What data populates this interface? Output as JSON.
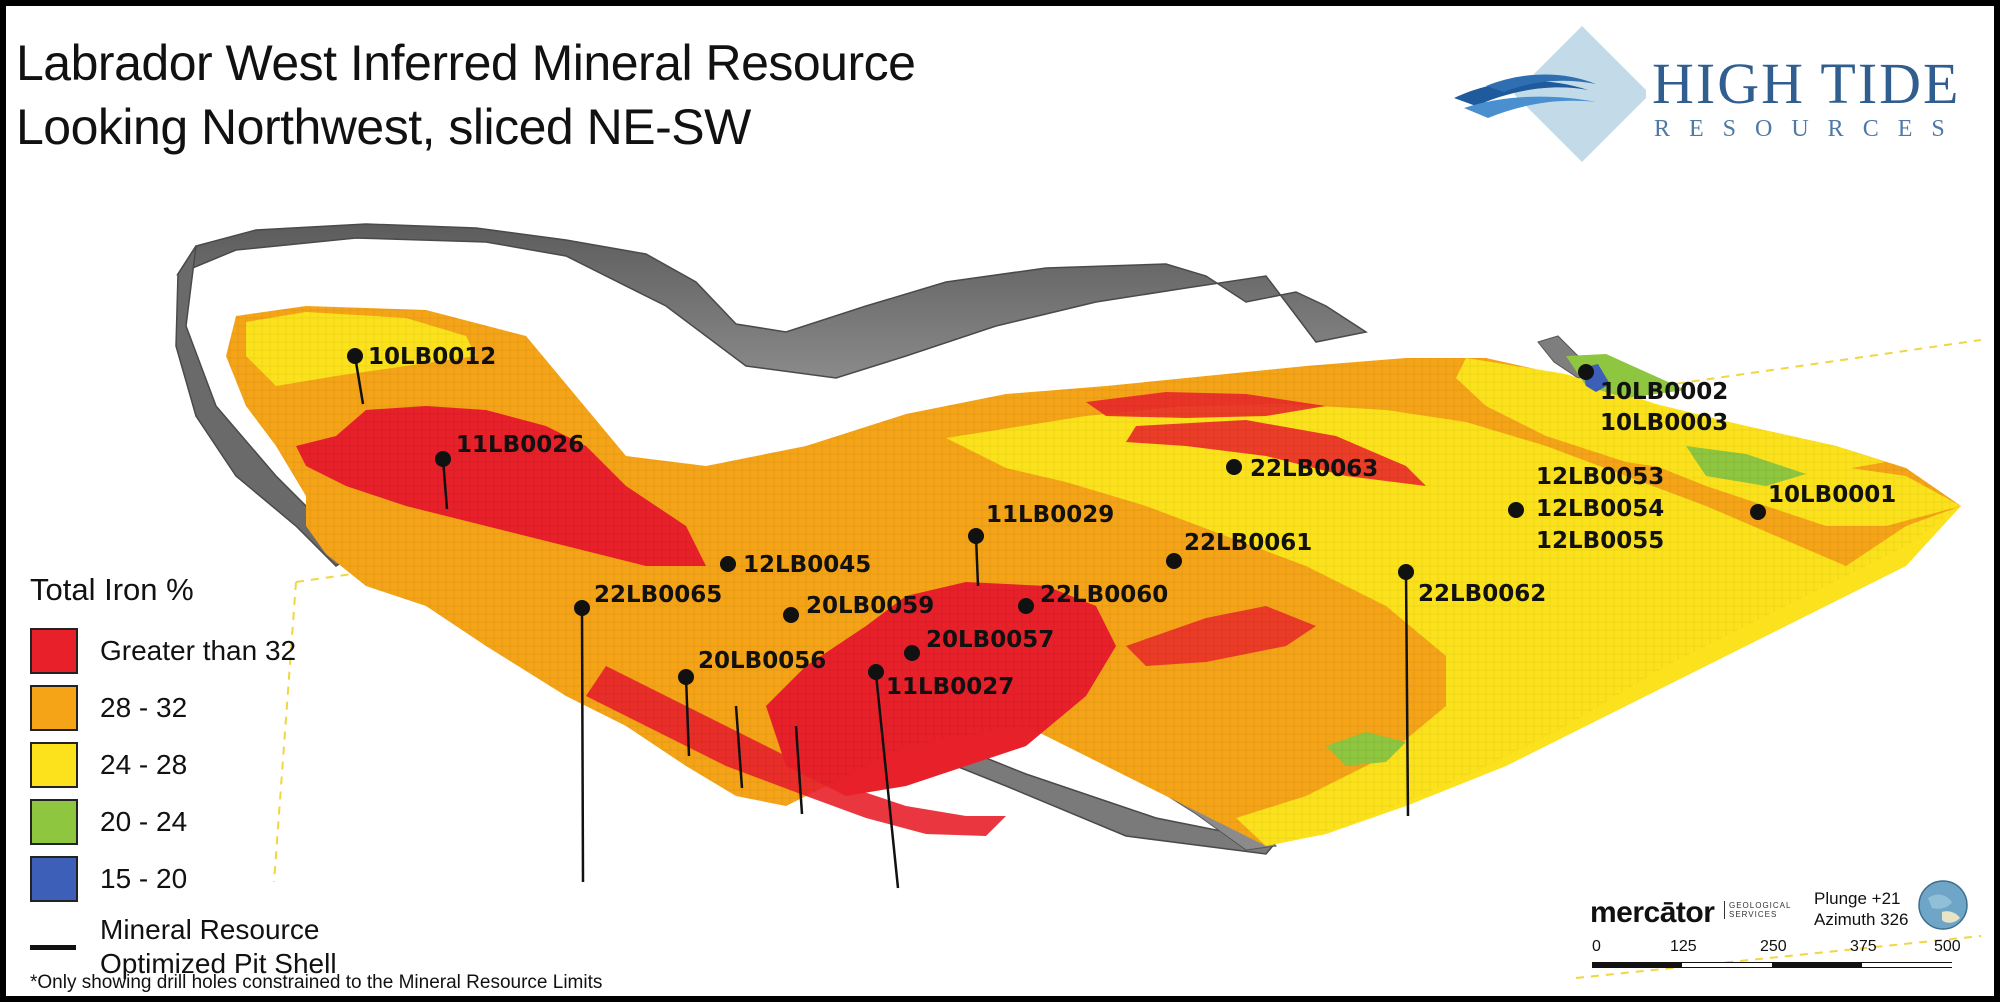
{
  "title": {
    "line1": "Labrador West Inferred Mineral Resource",
    "line2": "Looking Northwest, sliced NE-SW"
  },
  "logo": {
    "main": "HIGH TIDE",
    "sub": "RESOURCES",
    "colors": {
      "diamond": "#c3dbe9",
      "wave_dark": "#1e5a9c",
      "wave_light": "#4a8fd0"
    }
  },
  "legend": {
    "title": "Total Iron %",
    "items": [
      {
        "label": "Greater than 32",
        "color": "#e8202a"
      },
      {
        "label": "28 - 32",
        "color": "#f5a418"
      },
      {
        "label": "24 - 28",
        "color": "#fce21c"
      },
      {
        "label": "20 - 24",
        "color": "#8ec63f"
      },
      {
        "label": "15 - 20",
        "color": "#3d5fb8"
      }
    ],
    "pit_shell_line1": "Mineral Resource",
    "pit_shell_line2": "Optimized Pit Shell"
  },
  "footnote": "*Only showing drill holes constrained to the Mineral Resource Limits",
  "drill_holes": [
    "10LB0012",
    "11LB0026",
    "12LB0045",
    "22LB0065",
    "20LB0059",
    "20LB0056",
    "11LB0029",
    "22LB0060",
    "20LB0057",
    "11LB0027",
    "22LB0063",
    "22LB0061",
    "22LB0062",
    "10LB0002",
    "10LB0003",
    "12LB0053",
    "12LB0054",
    "12LB0055",
    "10LB0001"
  ],
  "credit": {
    "name": "mercātor",
    "tagline": "GEOLOGICAL SERVICES",
    "plunge": "Plunge +21",
    "azimuth": "Azimuth 326"
  },
  "scale_bar": {
    "ticks": [
      "0",
      "125",
      "250",
      "375",
      "500"
    ]
  },
  "colors": {
    "pit_shell": "#6e6e6e",
    "background": "#ffffff",
    "frame": "#000000"
  }
}
